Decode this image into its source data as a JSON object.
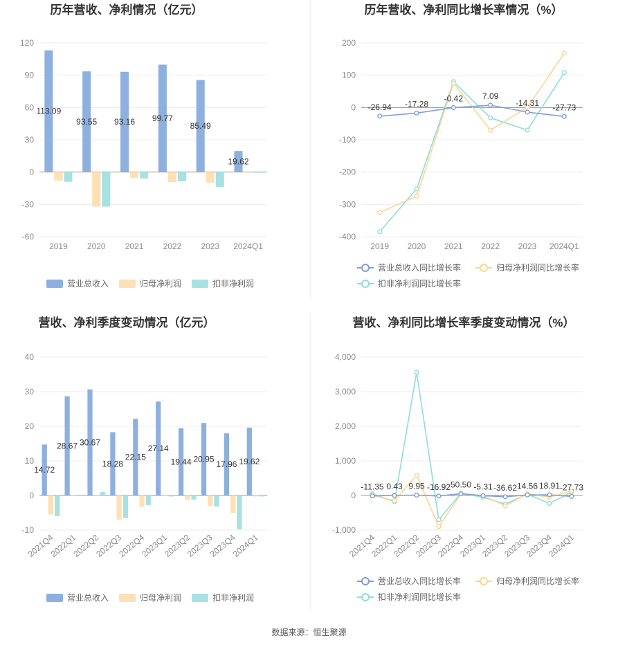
{
  "colors": {
    "revenue": "#8eb0de",
    "net_profit": "#fde0b4",
    "deducted_profit": "#a8e1e2",
    "zero_line": "#999999"
  },
  "chart_data": [
    {
      "type": "bar",
      "title": "历年营收、净利情况（亿元）",
      "categories": [
        "2019",
        "2020",
        "2021",
        "2022",
        "2023",
        "2024Q1"
      ],
      "ylim": [
        -60,
        120
      ],
      "yticks": [
        -60,
        -30,
        0,
        30,
        60,
        90,
        120
      ],
      "series": [
        {
          "name": "营业总收入",
          "values": [
            113.09,
            93.55,
            93.16,
            99.77,
            85.49,
            19.62
          ],
          "labels": [
            "113.09",
            "93.55",
            "93.16",
            "99.77",
            "85.49",
            "19.62"
          ]
        },
        {
          "name": "归母净利润",
          "values": [
            -8,
            -32,
            -5.5,
            -9.5,
            -10,
            -0.3
          ]
        },
        {
          "name": "扣非净利润",
          "values": [
            -9,
            -32,
            -6,
            -8.5,
            -14,
            -0.3
          ]
        }
      ],
      "legend_position": "bottom",
      "grid": true
    },
    {
      "type": "line",
      "title": "历年营收、净利同比增长率情况（%）",
      "categories": [
        "2019",
        "2020",
        "2021",
        "2022",
        "2023",
        "2024Q1"
      ],
      "ylim": [
        -400,
        200
      ],
      "yticks": [
        -400,
        -300,
        -200,
        -100,
        0,
        100,
        200
      ],
      "series": [
        {
          "name": "营业总收入同比增长率",
          "values": [
            -26.94,
            -17.28,
            -0.42,
            7.09,
            -14.31,
            -27.73
          ],
          "labels": [
            "-26.94",
            "-17.28",
            "-0.42",
            "7.09",
            "-14.31",
            "-27.73"
          ]
        },
        {
          "name": "归母净利润同比增长率",
          "values": [
            -325,
            -275,
            75,
            -70,
            0,
            168
          ]
        },
        {
          "name": "扣非净利润同比增长率",
          "values": [
            -385,
            -252,
            80,
            -32,
            -70,
            108
          ]
        }
      ],
      "legend_position": "bottom",
      "grid": true
    },
    {
      "type": "bar",
      "title": "营收、净利季度变动情况（亿元）",
      "categories": [
        "2021Q4",
        "2022Q1",
        "2022Q2",
        "2022Q3",
        "2022Q4",
        "2023Q1",
        "2023Q2",
        "2023Q3",
        "2023Q4",
        "2024Q1"
      ],
      "ylim": [
        -10,
        40
      ],
      "yticks": [
        -10,
        0,
        10,
        20,
        30,
        40
      ],
      "series": [
        {
          "name": "营业总收入",
          "values": [
            14.72,
            28.67,
            30.67,
            18.28,
            22.15,
            27.14,
            19.44,
            20.95,
            17.96,
            19.62
          ],
          "labels": [
            "14.72",
            "28.67",
            "30.67",
            "18.28",
            "22.15",
            "27.14",
            "19.44",
            "20.95",
            "17.96",
            "19.62"
          ]
        },
        {
          "name": "归母净利润",
          "values": [
            -5.5,
            -0.2,
            -0.2,
            -7,
            -3.3,
            -0.2,
            -1.3,
            -3,
            -5,
            -0.3
          ]
        },
        {
          "name": "扣非净利润",
          "values": [
            -6,
            -0.2,
            1,
            -6.5,
            -2.8,
            -0.3,
            -1.2,
            -3.2,
            -9.8,
            -0.3
          ]
        }
      ],
      "legend_position": "bottom",
      "grid": true
    },
    {
      "type": "line",
      "title": "营收、净利同比增长率季度变动情况（%）",
      "categories": [
        "2021Q4",
        "2022Q1",
        "2022Q2",
        "2022Q3",
        "2022Q4",
        "2023Q1",
        "2023Q2",
        "2023Q3",
        "2023Q4",
        "2024Q1"
      ],
      "ylim": [
        -1000,
        4000
      ],
      "yticks": [
        -1000,
        0,
        1000,
        2000,
        3000,
        4000
      ],
      "ytick_labels": [
        "-1,000",
        "0",
        "1,000",
        "2,000",
        "3,000",
        "4,000"
      ],
      "series": [
        {
          "name": "营业总收入同比增长率",
          "values": [
            -11.35,
            0.43,
            9.95,
            -16.92,
            50.5,
            -5.31,
            -36.62,
            14.56,
            18.91,
            -27.73
          ],
          "labels": [
            "-11.35",
            "0.43",
            "9.95",
            "-16.92",
            "50.50",
            "-5.31",
            "-36.62",
            "14.56",
            "18.91",
            "-27.73"
          ]
        },
        {
          "name": "归母净利润同比增长率",
          "values": [
            0,
            -150,
            580,
            -900,
            40,
            0,
            -300,
            50,
            -50,
            130
          ]
        },
        {
          "name": "扣非净利润同比增长率",
          "values": [
            50,
            -180,
            3560,
            -700,
            60,
            -50,
            -250,
            40,
            -230,
            100
          ]
        }
      ],
      "legend_position": "bottom",
      "grid": true
    }
  ],
  "footer": {
    "source": "数据来源：恒生聚源"
  }
}
